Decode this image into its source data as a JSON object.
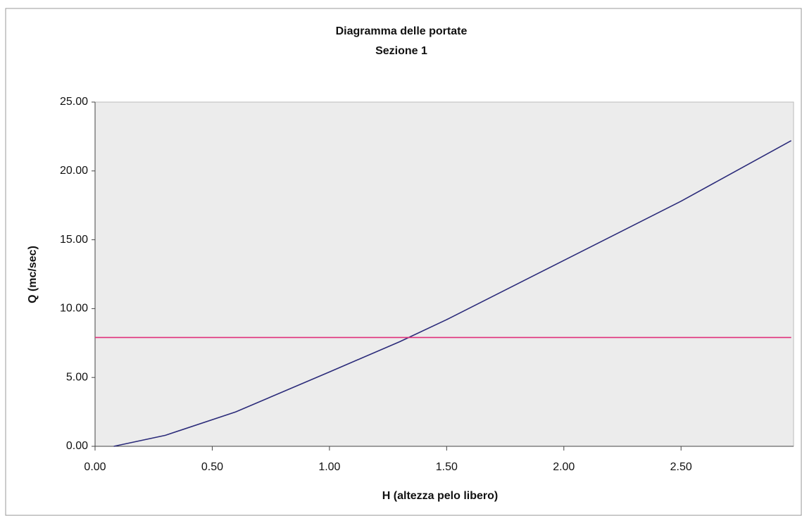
{
  "chart_data": {
    "type": "line",
    "title": "Diagramma delle portate",
    "subtitle": "Sezione 1",
    "x_label": "H (altezza pelo libero)",
    "y_label": "Q (mc/sec)",
    "xlim": [
      0,
      2.98
    ],
    "ylim": [
      0,
      25
    ],
    "xticks": [
      {
        "value": 0,
        "label": "0.00"
      },
      {
        "value": 0.5,
        "label": "0.50"
      },
      {
        "value": 1,
        "label": "1.00"
      },
      {
        "value": 1.5,
        "label": "1.50"
      },
      {
        "value": 2,
        "label": "2.00"
      },
      {
        "value": 2.5,
        "label": "2.50"
      }
    ],
    "yticks": [
      {
        "value": 0,
        "label": "0.00"
      },
      {
        "value": 5,
        "label": "5.00"
      },
      {
        "value": 10,
        "label": "10.00"
      },
      {
        "value": 15,
        "label": "15.00"
      },
      {
        "value": 20,
        "label": "20.00"
      },
      {
        "value": 25,
        "label": "25.00"
      }
    ],
    "grid": false,
    "series": [
      {
        "color": "#2b2b7a",
        "x": [
          0.08,
          0.3,
          0.6,
          1.0,
          1.3,
          1.5,
          2.0,
          2.5,
          2.97
        ],
        "values": [
          0,
          0.8,
          2.5,
          5.4,
          7.6,
          9.2,
          13.5,
          17.8,
          22.2
        ]
      },
      {
        "color": "#e0307a",
        "x": [
          0,
          2.97
        ],
        "values": [
          7.9,
          7.9
        ]
      }
    ]
  }
}
